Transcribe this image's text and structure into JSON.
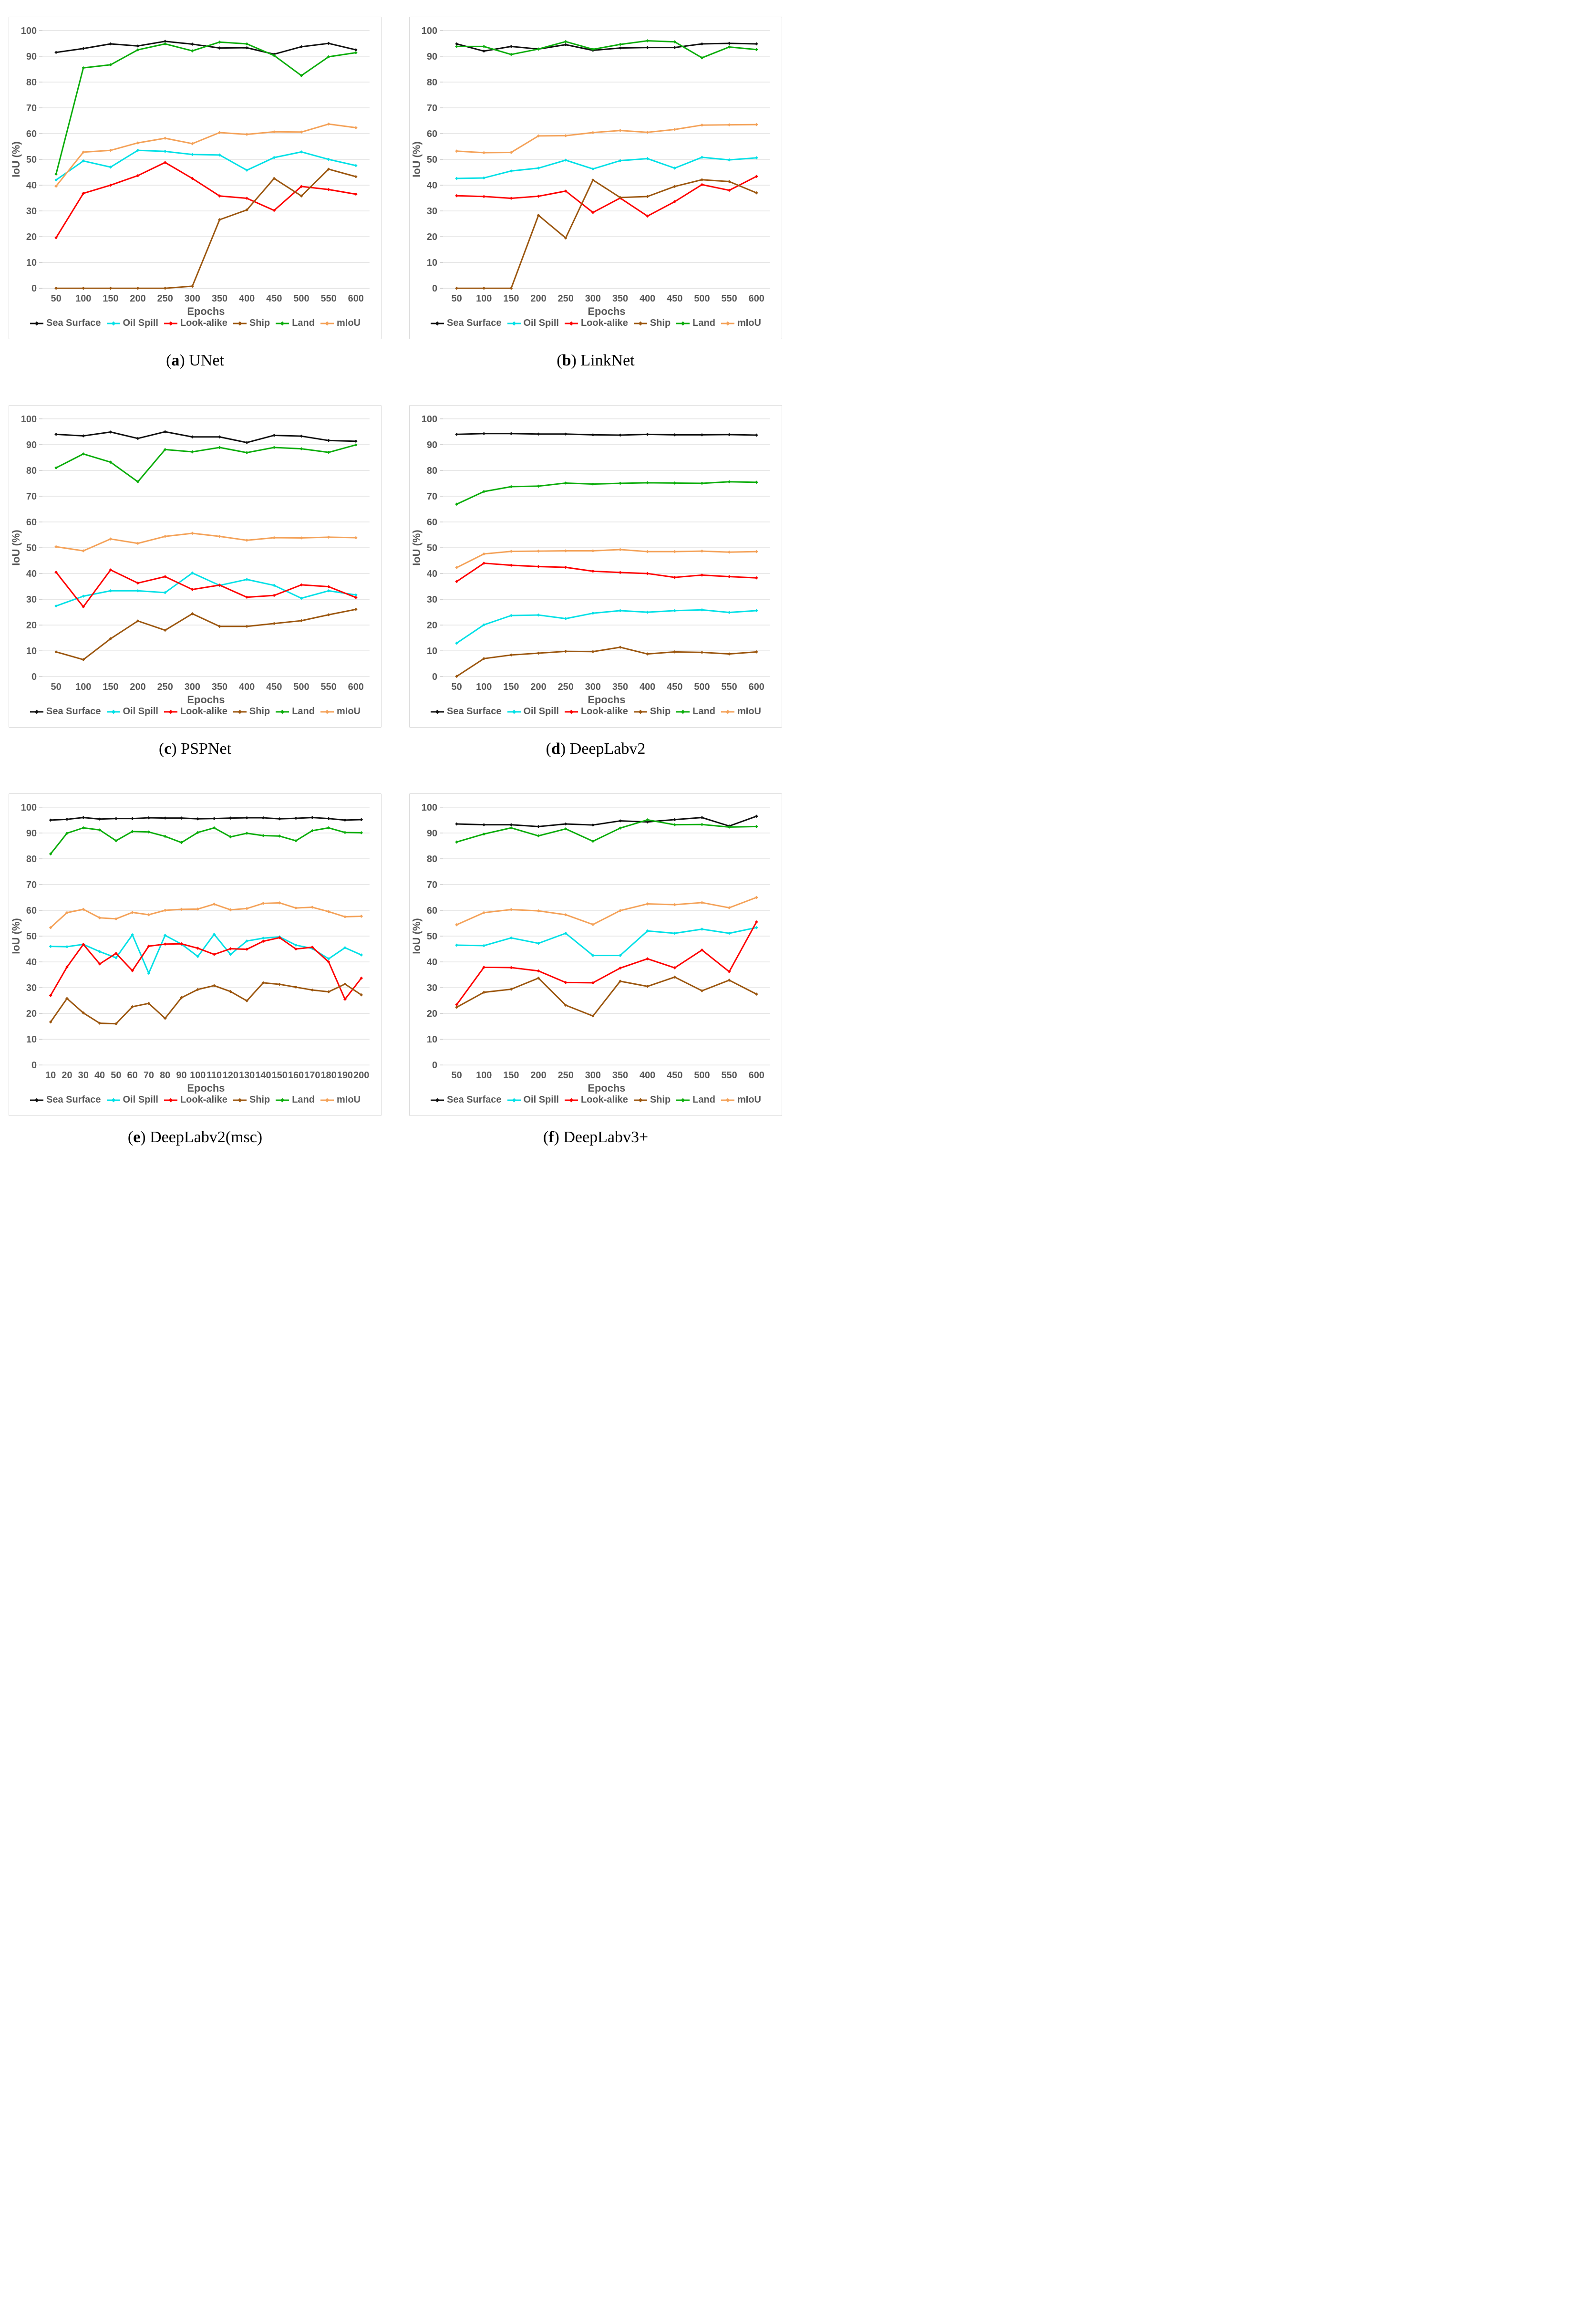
{
  "styles": {
    "text_color": "#595959",
    "grid_color": "#E2E2E2",
    "tick_stub_color": "#C9C9C9",
    "panel_border_color": "#D9D9D9",
    "caption_color": "#000000"
  },
  "legend_labels": [
    "Sea Surface",
    "Oil Spill",
    "Look-alike",
    "Ship",
    "Land",
    "mIoU"
  ],
  "series_colors": {
    "sea_surface": "#111111",
    "oil_spill": "#00E0E6",
    "look_alike": "#FE0000",
    "ship": "#9C5710",
    "land": "#0CAD0C",
    "miou": "#F4A259"
  },
  "chart_data": [
    {
      "id": "a",
      "type": "line",
      "caption": {
        "letter": "a",
        "name": "UNet"
      },
      "xlabel": "Epochs",
      "ylabel": "IoU (%)",
      "ylim": [
        0,
        100
      ],
      "y_ticks": [
        0,
        10,
        20,
        30,
        40,
        50,
        60,
        70,
        80,
        90,
        100
      ],
      "grid": "horizontal",
      "legend_position": "bottom",
      "x": [
        50,
        100,
        150,
        200,
        250,
        300,
        350,
        400,
        450,
        500,
        550,
        600
      ],
      "series": [
        {
          "name": "Sea Surface",
          "color": "#111111",
          "values": [
            91.5,
            93.0,
            94.8,
            94.0,
            95.8,
            94.7,
            93.2,
            93.3,
            90.8,
            93.7,
            95.0,
            92.5
          ]
        },
        {
          "name": "Oil Spill",
          "color": "#00E0E6",
          "values": [
            42.0,
            49.4,
            47.0,
            53.5,
            53.1,
            51.9,
            51.7,
            45.8,
            50.7,
            52.9,
            50.0,
            47.6
          ]
        },
        {
          "name": "Look-alike",
          "color": "#FE0000",
          "values": [
            19.6,
            36.8,
            40.0,
            43.7,
            48.8,
            42.6,
            35.8,
            34.9,
            30.2,
            39.5,
            38.3,
            36.5
          ]
        },
        {
          "name": "Ship",
          "color": "#9C5710",
          "values": [
            0.0,
            0.0,
            0.0,
            0.0,
            0.0,
            0.8,
            26.6,
            30.4,
            42.6,
            35.8,
            46.2,
            43.3
          ]
        },
        {
          "name": "Land",
          "color": "#0CAD0C",
          "values": [
            44.3,
            85.5,
            86.7,
            92.5,
            94.8,
            92.1,
            95.5,
            94.8,
            90.3,
            82.5,
            89.8,
            91.4
          ]
        },
        {
          "name": "mIoU",
          "color": "#F4A259",
          "values": [
            39.6,
            52.8,
            53.5,
            56.4,
            58.2,
            56.1,
            60.4,
            59.7,
            60.7,
            60.6,
            63.7,
            62.3
          ]
        }
      ]
    },
    {
      "id": "b",
      "type": "line",
      "caption": {
        "letter": "b",
        "name": "LinkNet"
      },
      "xlabel": "Epochs",
      "ylabel": "IoU (%)",
      "ylim": [
        0,
        100
      ],
      "y_ticks": [
        0,
        10,
        20,
        30,
        40,
        50,
        60,
        70,
        80,
        90,
        100
      ],
      "grid": "horizontal",
      "legend_position": "bottom",
      "x": [
        50,
        100,
        150,
        200,
        250,
        300,
        350,
        400,
        450,
        500,
        550,
        600
      ],
      "series": [
        {
          "name": "Sea Surface",
          "color": "#111111",
          "values": [
            94.8,
            92.0,
            93.8,
            92.8,
            94.5,
            92.3,
            93.2,
            93.4,
            93.4,
            94.8,
            95.0,
            94.8
          ]
        },
        {
          "name": "Oil Spill",
          "color": "#00E0E6",
          "values": [
            42.6,
            42.8,
            45.5,
            46.6,
            49.7,
            46.3,
            49.5,
            50.3,
            46.6,
            50.8,
            49.8,
            50.6
          ]
        },
        {
          "name": "Look-alike",
          "color": "#FE0000",
          "values": [
            35.9,
            35.6,
            34.9,
            35.7,
            37.7,
            29.4,
            35.0,
            28.0,
            33.6,
            40.2,
            38.0,
            43.4
          ]
        },
        {
          "name": "Ship",
          "color": "#9C5710",
          "values": [
            0.0,
            0.0,
            0.0,
            28.3,
            19.5,
            42.0,
            35.2,
            35.6,
            39.5,
            42.1,
            41.4,
            37.0
          ]
        },
        {
          "name": "Land",
          "color": "#0CAD0C",
          "values": [
            93.8,
            93.8,
            90.7,
            92.8,
            95.7,
            92.7,
            94.6,
            96.0,
            95.6,
            89.4,
            93.6,
            92.6
          ]
        },
        {
          "name": "mIoU",
          "color": "#F4A259",
          "values": [
            53.2,
            52.6,
            52.7,
            59.1,
            59.2,
            60.4,
            61.2,
            60.5,
            61.6,
            63.3,
            63.4,
            63.5
          ]
        }
      ]
    },
    {
      "id": "c",
      "type": "line",
      "caption": {
        "letter": "c",
        "name": "PSPNet"
      },
      "xlabel": "Epochs",
      "ylabel": "IoU (%)",
      "ylim": [
        0,
        100
      ],
      "y_ticks": [
        0,
        10,
        20,
        30,
        40,
        50,
        60,
        70,
        80,
        90,
        100
      ],
      "grid": "horizontal",
      "legend_position": "bottom",
      "x": [
        50,
        100,
        150,
        200,
        250,
        300,
        350,
        400,
        450,
        500,
        550,
        600
      ],
      "series": [
        {
          "name": "Sea Surface",
          "color": "#111111",
          "values": [
            94.0,
            93.4,
            94.9,
            92.4,
            95.0,
            93.0,
            93.0,
            90.8,
            93.6,
            93.3,
            91.6,
            91.3
          ]
        },
        {
          "name": "Oil Spill",
          "color": "#00E0E6",
          "values": [
            27.4,
            31.2,
            33.3,
            33.3,
            32.6,
            40.2,
            35.4,
            37.7,
            35.4,
            30.4,
            33.3,
            31.7
          ]
        },
        {
          "name": "Look-alike",
          "color": "#FE0000",
          "values": [
            40.5,
            27.1,
            41.4,
            36.3,
            38.8,
            33.8,
            35.5,
            30.8,
            31.5,
            35.6,
            34.9,
            30.7
          ]
        },
        {
          "name": "Ship",
          "color": "#9C5710",
          "values": [
            9.6,
            6.6,
            14.7,
            21.6,
            18.0,
            24.4,
            19.5,
            19.5,
            20.6,
            21.7,
            24.0,
            26.1
          ]
        },
        {
          "name": "Land",
          "color": "#0CAD0C",
          "values": [
            81.0,
            86.4,
            83.2,
            75.6,
            88.1,
            87.2,
            88.9,
            86.9,
            88.9,
            88.4,
            87.0,
            89.9
          ]
        },
        {
          "name": "mIoU",
          "color": "#F4A259",
          "values": [
            50.4,
            48.8,
            53.4,
            51.7,
            54.4,
            55.6,
            54.4,
            52.9,
            53.9,
            53.8,
            54.1,
            53.9
          ]
        }
      ]
    },
    {
      "id": "d",
      "type": "line",
      "caption": {
        "letter": "d",
        "name": "DeepLabv2"
      },
      "xlabel": "Epochs",
      "ylabel": "IoU (%)",
      "ylim": [
        0,
        100
      ],
      "y_ticks": [
        0,
        10,
        20,
        30,
        40,
        50,
        60,
        70,
        80,
        90,
        100
      ],
      "grid": "horizontal",
      "legend_position": "bottom",
      "x": [
        50,
        100,
        150,
        200,
        250,
        300,
        350,
        400,
        450,
        500,
        550,
        600
      ],
      "series": [
        {
          "name": "Sea Surface",
          "color": "#111111",
          "values": [
            94.0,
            94.3,
            94.3,
            94.1,
            94.1,
            93.8,
            93.7,
            94.0,
            93.8,
            93.8,
            93.9,
            93.7
          ]
        },
        {
          "name": "Oil Spill",
          "color": "#00E0E6",
          "values": [
            13.0,
            20.1,
            23.7,
            23.9,
            22.5,
            24.6,
            25.6,
            25.0,
            25.6,
            25.9,
            24.9,
            25.6
          ]
        },
        {
          "name": "Look-alike",
          "color": "#FE0000",
          "values": [
            36.9,
            44.0,
            43.2,
            42.7,
            42.4,
            40.9,
            40.4,
            40.0,
            38.5,
            39.4,
            38.8,
            38.3
          ]
        },
        {
          "name": "Ship",
          "color": "#9C5710",
          "values": [
            0.1,
            7.0,
            8.4,
            9.1,
            9.8,
            9.7,
            11.4,
            8.8,
            9.6,
            9.4,
            8.8,
            9.6
          ]
        },
        {
          "name": "Land",
          "color": "#0CAD0C",
          "values": [
            66.9,
            71.8,
            73.7,
            73.9,
            75.1,
            74.7,
            75.0,
            75.2,
            75.1,
            75.0,
            75.6,
            75.4
          ]
        },
        {
          "name": "mIoU",
          "color": "#F4A259",
          "values": [
            42.3,
            47.6,
            48.6,
            48.7,
            48.8,
            48.8,
            49.3,
            48.5,
            48.5,
            48.7,
            48.3,
            48.5
          ]
        }
      ]
    },
    {
      "id": "e",
      "type": "line",
      "caption": {
        "letter": "e",
        "name": "DeepLabv2(msc)"
      },
      "xlabel": "Epochs",
      "ylabel": "IoU (%)",
      "ylim": [
        0,
        100
      ],
      "y_ticks": [
        0,
        10,
        20,
        30,
        40,
        50,
        60,
        70,
        80,
        90,
        100
      ],
      "grid": "horizontal",
      "legend_position": "bottom",
      "x": [
        10,
        20,
        30,
        40,
        50,
        60,
        70,
        80,
        90,
        100,
        110,
        120,
        130,
        140,
        150,
        160,
        170,
        180,
        190,
        200
      ],
      "series": [
        {
          "name": "Sea Surface",
          "color": "#111111",
          "values": [
            95.0,
            95.3,
            96.0,
            95.4,
            95.6,
            95.6,
            95.9,
            95.8,
            95.8,
            95.5,
            95.6,
            95.8,
            95.9,
            95.9,
            95.5,
            95.7,
            96.0,
            95.6,
            95.0,
            95.2
          ]
        },
        {
          "name": "Oil Spill",
          "color": "#00E0E6",
          "values": [
            46.0,
            45.9,
            46.8,
            44.0,
            41.6,
            50.5,
            35.6,
            50.3,
            46.9,
            42.1,
            50.7,
            42.9,
            48.1,
            49.2,
            49.7,
            46.5,
            45.2,
            41.2,
            45.5,
            42.7
          ]
        },
        {
          "name": "Look-alike",
          "color": "#FE0000",
          "values": [
            27.0,
            38.0,
            46.8,
            39.2,
            43.3,
            36.6,
            46.1,
            46.9,
            47.0,
            45.3,
            42.9,
            45.1,
            44.9,
            48.0,
            49.4,
            45.0,
            45.7,
            40.0,
            25.5,
            33.7
          ]
        },
        {
          "name": "Ship",
          "color": "#9C5710",
          "values": [
            16.7,
            25.8,
            20.2,
            16.2,
            16.0,
            22.6,
            23.9,
            18.1,
            26.1,
            29.3,
            30.8,
            28.5,
            24.9,
            31.9,
            31.3,
            30.2,
            29.1,
            28.4,
            31.4,
            27.2
          ]
        },
        {
          "name": "Land",
          "color": "#0CAD0C",
          "values": [
            81.9,
            89.9,
            92.0,
            91.2,
            87.0,
            90.6,
            90.4,
            88.7,
            86.3,
            90.2,
            92.0,
            88.5,
            89.9,
            89.0,
            88.8,
            87.0,
            90.9,
            92.0,
            90.2,
            90.1
          ]
        },
        {
          "name": "mIoU",
          "color": "#F4A259",
          "values": [
            53.3,
            59.1,
            60.4,
            57.1,
            56.7,
            59.2,
            58.3,
            60.0,
            60.4,
            60.5,
            62.4,
            60.2,
            60.7,
            62.7,
            62.9,
            60.9,
            61.2,
            59.5,
            57.5,
            57.7
          ]
        }
      ]
    },
    {
      "id": "f",
      "type": "line",
      "caption": {
        "letter": "f",
        "name": "DeepLabv3+"
      },
      "xlabel": "Epochs",
      "ylabel": "IoU (%)",
      "ylim": [
        0,
        100
      ],
      "y_ticks": [
        0,
        10,
        20,
        30,
        40,
        50,
        60,
        70,
        80,
        90,
        100
      ],
      "grid": "horizontal",
      "legend_position": "bottom",
      "x": [
        50,
        100,
        150,
        200,
        250,
        300,
        350,
        400,
        450,
        500,
        550,
        600
      ],
      "series": [
        {
          "name": "Sea Surface",
          "color": "#111111",
          "values": [
            93.5,
            93.2,
            93.2,
            92.5,
            93.5,
            93.1,
            94.7,
            94.3,
            95.2,
            96.0,
            92.7,
            96.5
          ]
        },
        {
          "name": "Oil Spill",
          "color": "#00E0E6",
          "values": [
            46.5,
            46.3,
            49.3,
            47.2,
            51.1,
            42.5,
            42.5,
            52.0,
            51.1,
            52.7,
            51.1,
            53.3
          ]
        },
        {
          "name": "Look-alike",
          "color": "#FE0000",
          "values": [
            23.4,
            37.9,
            37.8,
            36.5,
            32.0,
            31.9,
            37.6,
            41.2,
            37.7,
            44.6,
            36.2,
            55.5
          ]
        },
        {
          "name": "Ship",
          "color": "#9C5710",
          "values": [
            22.4,
            28.2,
            29.4,
            33.7,
            23.2,
            19.0,
            32.5,
            30.5,
            34.1,
            28.8,
            32.9,
            27.5
          ]
        },
        {
          "name": "Land",
          "color": "#0CAD0C",
          "values": [
            86.5,
            89.6,
            92.0,
            88.9,
            91.6,
            86.8,
            91.9,
            95.1,
            93.2,
            93.3,
            92.3,
            92.5
          ]
        },
        {
          "name": "mIoU",
          "color": "#F4A259",
          "values": [
            54.4,
            59.1,
            60.3,
            59.8,
            58.3,
            54.5,
            59.9,
            62.5,
            62.2,
            63.0,
            61.0,
            65.0
          ]
        }
      ]
    }
  ]
}
